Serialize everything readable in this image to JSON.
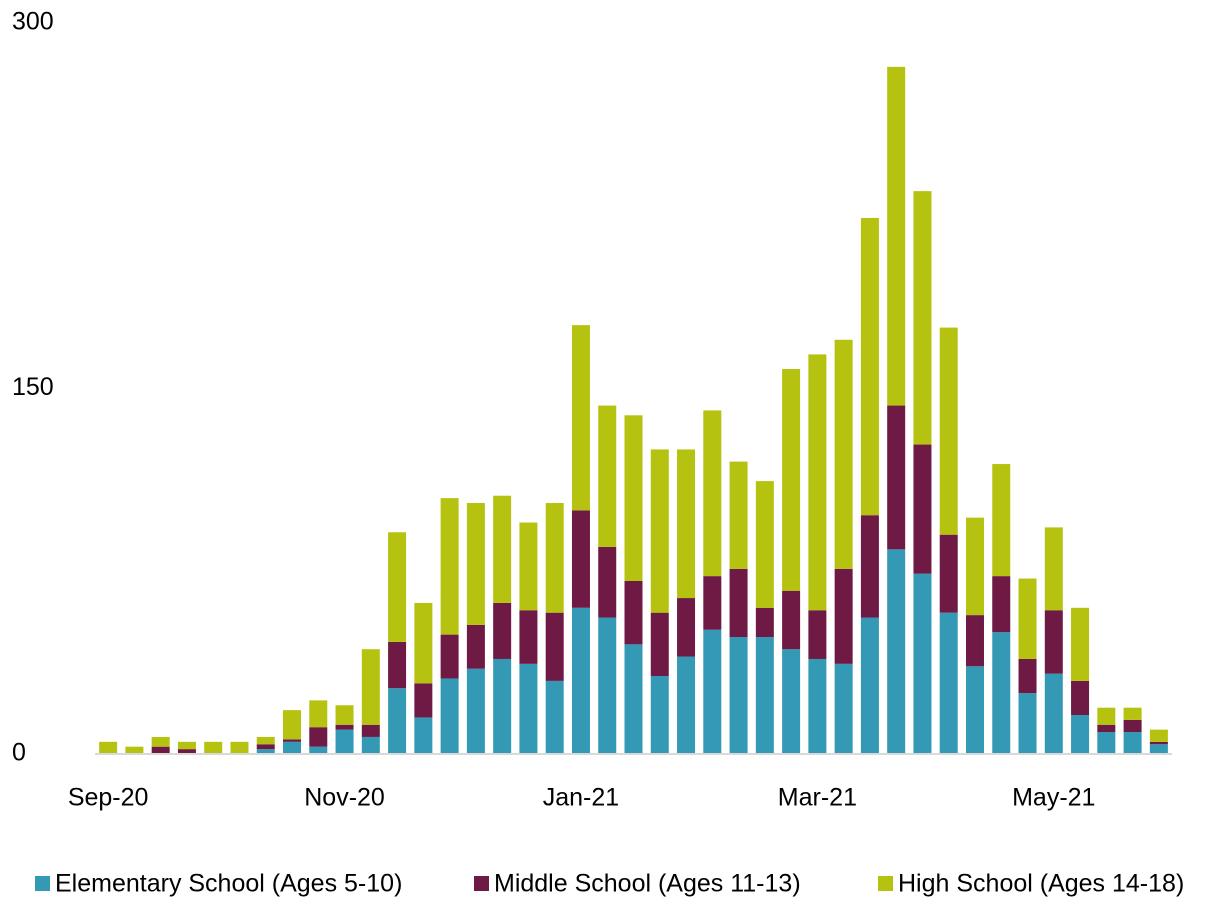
{
  "chart_data": {
    "type": "stacked_bar",
    "categories": [
      "Sep-20",
      null,
      null,
      null,
      null,
      null,
      null,
      null,
      null,
      "Nov-20",
      null,
      null,
      null,
      null,
      null,
      null,
      null,
      null,
      "Jan-21",
      null,
      null,
      null,
      null,
      null,
      null,
      null,
      null,
      "Mar-21",
      null,
      null,
      null,
      null,
      null,
      null,
      null,
      null,
      "May-21",
      null,
      null,
      null,
      null
    ],
    "series": [
      {
        "name": "Elementary School (Ages 5-10)",
        "color": "#3399b5",
        "values": [
          0,
          0,
          0,
          0,
          0,
          0,
          2,
          5,
          3,
          10,
          7,
          27,
          15,
          31,
          35,
          39,
          37,
          30,
          60,
          56,
          45,
          32,
          40,
          51,
          48,
          48,
          43,
          39,
          37,
          56,
          84,
          74,
          58,
          36,
          50,
          25,
          33,
          16,
          9,
          9,
          4
        ]
      },
      {
        "name": "Middle School (Ages 11-13)",
        "color": "#6e1a45",
        "values": [
          0,
          0,
          3,
          2,
          0,
          0,
          2,
          1,
          8,
          2,
          5,
          19,
          14,
          18,
          18,
          23,
          22,
          28,
          40,
          29,
          26,
          26,
          24,
          22,
          28,
          12,
          24,
          20,
          39,
          42,
          59,
          53,
          32,
          21,
          23,
          14,
          26,
          14,
          3,
          5,
          1
        ]
      },
      {
        "name": "High School (Ages 14-18)",
        "color": "#b5c20f",
        "values": [
          5,
          3,
          4,
          3,
          5,
          5,
          3,
          12,
          11,
          8,
          31,
          45,
          33,
          56,
          50,
          44,
          36,
          45,
          76,
          58,
          68,
          67,
          61,
          68,
          44,
          52,
          91,
          105,
          94,
          122,
          139,
          104,
          85,
          40,
          46,
          33,
          34,
          30,
          7,
          5,
          5
        ]
      }
    ],
    "ylim": [
      0,
      300
    ],
    "yticks": [
      0,
      150,
      300
    ],
    "legend": "bottom"
  }
}
